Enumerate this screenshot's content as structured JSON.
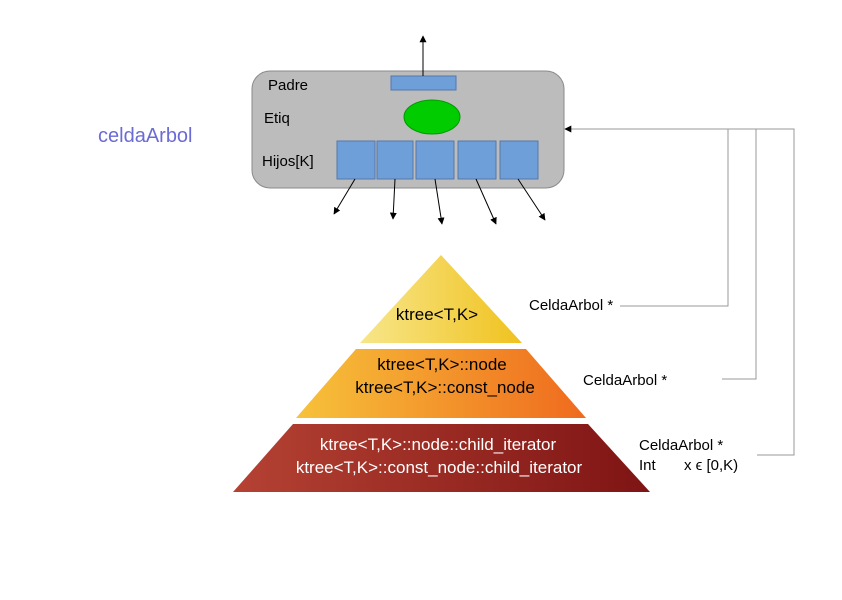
{
  "title": "celdaArbol",
  "cell": {
    "padre_label": "Padre",
    "etiq_label": "Etiq",
    "hijos_label": "Hijos[K]"
  },
  "pyramid": {
    "top": "ktree<T,K>",
    "middle_line1": "ktree<T,K>::node",
    "middle_line2": "ktree<T,K>::const_node",
    "bottom_line1": "ktree<T,K>::node::child_iterator",
    "bottom_line2": "ktree<T,K>::const_node::child_iterator"
  },
  "annotations": {
    "top": "CeldaArbol *",
    "middle": "CeldaArbol *",
    "bottom_line1": "CeldaArbol *",
    "bottom_line2_a": "Int",
    "bottom_line2_b": "x ϵ  [0,K)"
  },
  "colors": {
    "title": "#6b6bd6",
    "cell_fill": "#bcbcbc",
    "slot_fill": "#6f9fd8",
    "etiq_fill": "#00cc00",
    "pyramid_top": "#f5d44a",
    "pyramid_middle": "#f49423",
    "pyramid_bottom": "#a52a22"
  }
}
